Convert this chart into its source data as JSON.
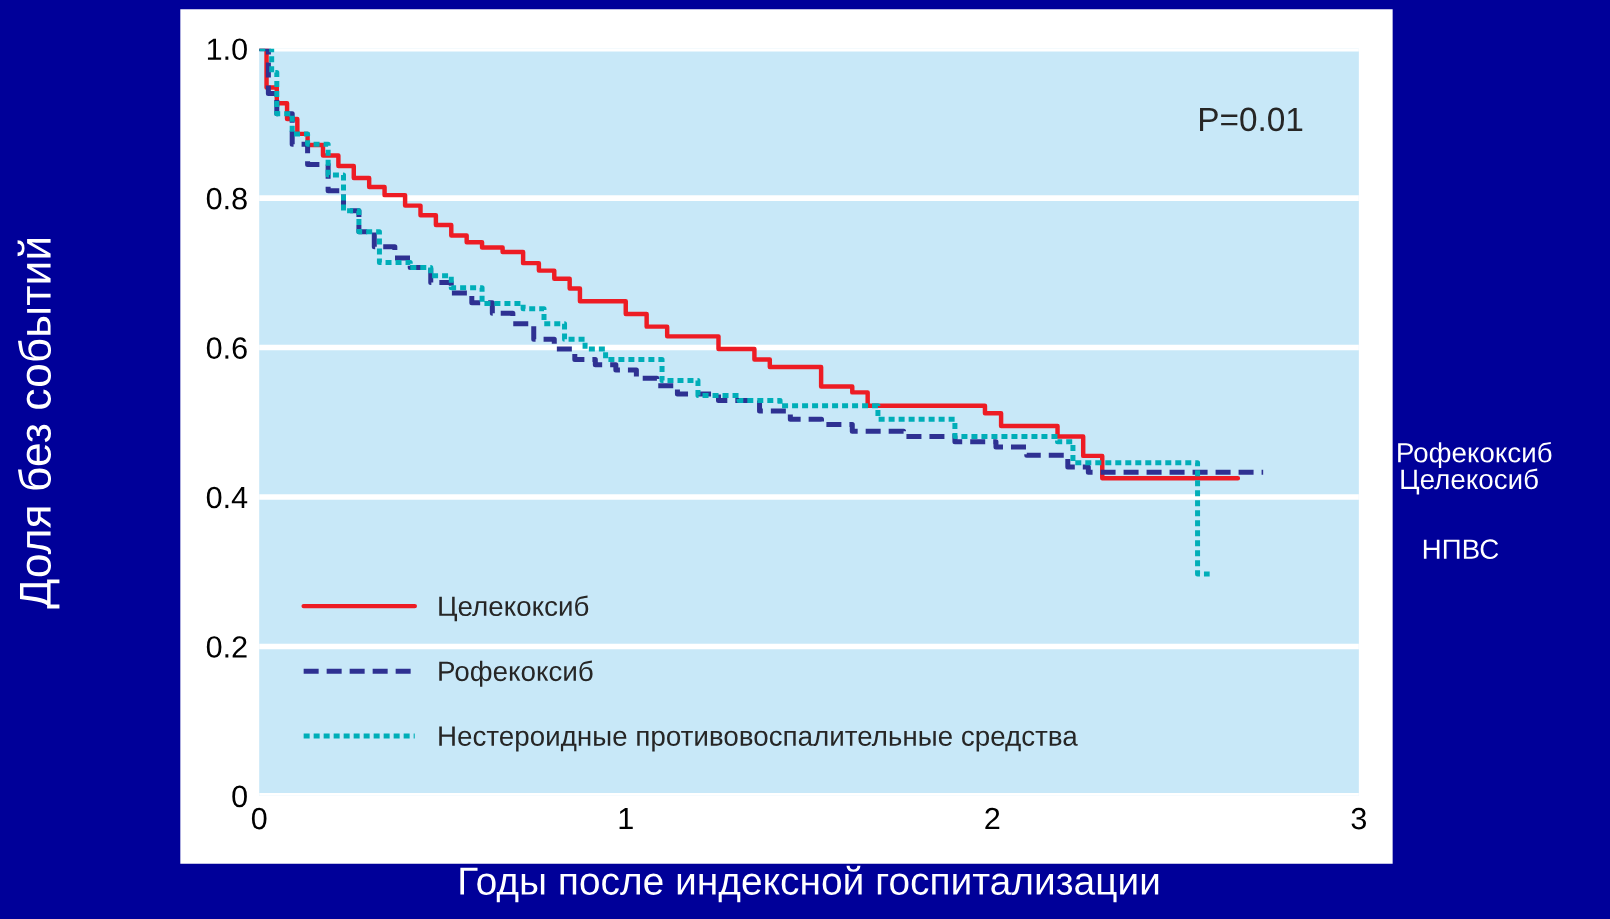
{
  "chart_data": {
    "type": "step",
    "xlabel": "Годы после индексной госпитализации",
    "ylabel": "Доля без событий",
    "annotations": [
      "P=0.01",
      "Рофекоксиб",
      "Целекосиб",
      "НПВС"
    ],
    "xlim": [
      0,
      3
    ],
    "xticks": [
      0,
      1,
      2,
      3
    ],
    "ylim": [
      0,
      1
    ],
    "yticks": [
      {
        "value": 0,
        "label": "0"
      },
      {
        "value": 0.2,
        "label": "0.2"
      },
      {
        "value": 0.4,
        "label": "0.4"
      },
      {
        "value": 0.6,
        "label": "0.6"
      },
      {
        "value": 0.8,
        "label": "0.8"
      },
      {
        "value": 1,
        "label": "1.0"
      }
    ],
    "grid": "y",
    "legend": "bottom left",
    "series": [
      {
        "name": "Целекоксиб",
        "color": "#ed1c24",
        "line_style": "solid",
        "x": [
          0,
          0.02,
          0.048,
          0.076,
          0.104,
          0.132,
          0.174,
          0.216,
          0.258,
          0.3,
          0.342,
          0.398,
          0.44,
          0.482,
          0.524,
          0.566,
          0.608,
          0.664,
          0.72,
          0.763,
          0.805,
          0.847,
          0.875,
          1.0,
          1.057,
          1.113,
          1.253,
          1.351,
          1.393,
          1.533,
          1.618,
          1.66,
          1.98,
          2.024,
          2.178,
          2.248,
          2.3,
          2.67
        ],
        "values": [
          1.0,
          0.948,
          0.927,
          0.906,
          0.886,
          0.871,
          0.857,
          0.843,
          0.827,
          0.815,
          0.804,
          0.79,
          0.777,
          0.764,
          0.75,
          0.741,
          0.734,
          0.728,
          0.713,
          0.703,
          0.692,
          0.679,
          0.662,
          0.645,
          0.628,
          0.615,
          0.598,
          0.584,
          0.574,
          0.548,
          0.54,
          0.522,
          0.512,
          0.495,
          0.481,
          0.455,
          0.425,
          0.425
        ]
      },
      {
        "name": "Рофекоксиб",
        "color": "#2e3192",
        "line_style": "dashed",
        "x": [
          0,
          0.025,
          0.048,
          0.09,
          0.132,
          0.188,
          0.23,
          0.272,
          0.314,
          0.37,
          0.412,
          0.468,
          0.524,
          0.58,
          0.636,
          0.692,
          0.749,
          0.805,
          0.861,
          0.917,
          0.973,
          1.029,
          1.085,
          1.141,
          1.253,
          1.365,
          1.449,
          1.534,
          1.618,
          1.758,
          1.898,
          2.01,
          2.094,
          2.206,
          2.262,
          2.739
        ],
        "values": [
          1.0,
          0.94,
          0.913,
          0.872,
          0.845,
          0.81,
          0.783,
          0.755,
          0.735,
          0.72,
          0.707,
          0.687,
          0.673,
          0.66,
          0.646,
          0.632,
          0.611,
          0.598,
          0.584,
          0.577,
          0.57,
          0.559,
          0.549,
          0.538,
          0.529,
          0.515,
          0.504,
          0.497,
          0.488,
          0.481,
          0.474,
          0.467,
          0.456,
          0.44,
          0.433,
          0.433
        ]
      },
      {
        "name": "Нестероидные противовоспалительные средства",
        "color": "#00aeb8",
        "line_style": "dotted",
        "x": [
          0,
          0.034,
          0.048,
          0.09,
          0.132,
          0.188,
          0.23,
          0.272,
          0.328,
          0.412,
          0.468,
          0.524,
          0.608,
          0.72,
          0.777,
          0.833,
          0.889,
          0.945,
          1.099,
          1.197,
          1.309,
          1.421,
          1.688,
          1.898,
          2.178,
          2.22,
          2.56,
          2.593
        ],
        "values": [
          1.0,
          0.968,
          0.913,
          0.886,
          0.872,
          0.831,
          0.783,
          0.755,
          0.714,
          0.707,
          0.696,
          0.68,
          0.659,
          0.652,
          0.632,
          0.611,
          0.598,
          0.584,
          0.556,
          0.536,
          0.529,
          0.522,
          0.504,
          0.481,
          0.474,
          0.446,
          0.297,
          0.297
        ]
      }
    ]
  }
}
